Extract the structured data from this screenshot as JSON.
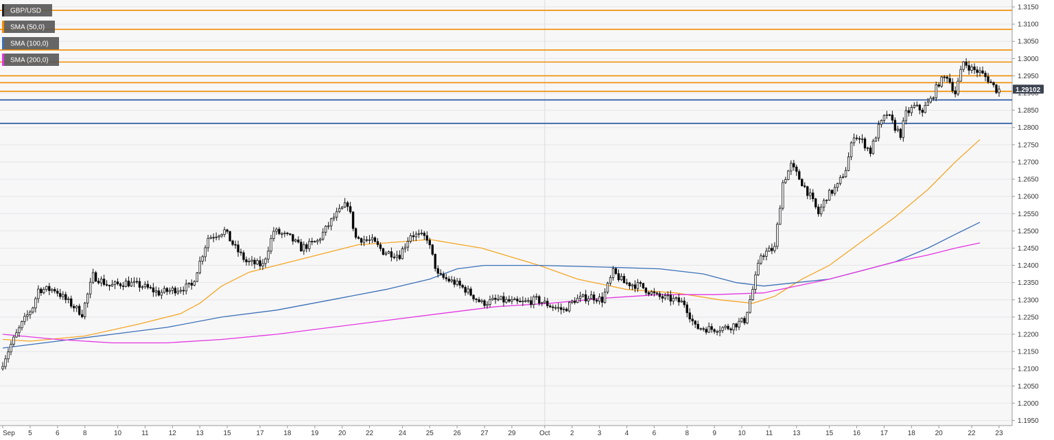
{
  "chart_data": {
    "type": "candlestick",
    "symbol": "GBP/USD",
    "last_price": "1.29102",
    "ylim": [
      1.1935,
      1.317
    ],
    "y_ticks": [
      "1.1950",
      "1.2000",
      "1.2050",
      "1.2100",
      "1.2150",
      "1.2200",
      "1.2250",
      "1.2300",
      "1.2350",
      "1.2400",
      "1.2450",
      "1.2500",
      "1.2550",
      "1.2600",
      "1.2650",
      "1.2700",
      "1.2750",
      "1.2800",
      "1.2850",
      "1.2900",
      "1.2950",
      "1.3000",
      "1.3050",
      "1.3100",
      "1.3150"
    ],
    "x_ticks": [
      {
        "label": "Sep",
        "i": 0
      },
      {
        "label": "5",
        "i": 10
      },
      {
        "label": "6",
        "i": 20
      },
      {
        "label": "8",
        "i": 30
      },
      {
        "label": "10",
        "i": 42
      },
      {
        "label": "11",
        "i": 52
      },
      {
        "label": "12",
        "i": 62
      },
      {
        "label": "13",
        "i": 72
      },
      {
        "label": "15",
        "i": 82
      },
      {
        "label": "17",
        "i": 94
      },
      {
        "label": "18",
        "i": 104
      },
      {
        "label": "19",
        "i": 114
      },
      {
        "label": "20",
        "i": 124
      },
      {
        "label": "22",
        "i": 134
      },
      {
        "label": "24",
        "i": 146
      },
      {
        "label": "25",
        "i": 156
      },
      {
        "label": "26",
        "i": 166
      },
      {
        "label": "27",
        "i": 176
      },
      {
        "label": "29",
        "i": 186
      },
      {
        "label": "Oct",
        "i": 198
      },
      {
        "label": "2",
        "i": 208
      },
      {
        "label": "3",
        "i": 218
      },
      {
        "label": "4",
        "i": 228
      },
      {
        "label": "6",
        "i": 238
      },
      {
        "label": "8",
        "i": 250
      },
      {
        "label": "9",
        "i": 260
      },
      {
        "label": "10",
        "i": 270
      },
      {
        "label": "11",
        "i": 280
      },
      {
        "label": "13",
        "i": 290
      },
      {
        "label": "15",
        "i": 302
      },
      {
        "label": "16",
        "i": 312
      },
      {
        "label": "17",
        "i": 322
      },
      {
        "label": "18",
        "i": 332
      },
      {
        "label": "20",
        "i": 342
      },
      {
        "label": "22",
        "i": 354
      },
      {
        "label": "23",
        "i": 364
      }
    ],
    "levels": [
      {
        "value": 1.314,
        "color": "#f08c00"
      },
      {
        "value": 1.3085,
        "color": "#f08c00"
      },
      {
        "value": 1.3025,
        "color": "#f08c00"
      },
      {
        "value": 1.299,
        "color": "#f08c00"
      },
      {
        "value": 1.295,
        "color": "#f08c00"
      },
      {
        "value": 1.293,
        "color": "#f08c00"
      },
      {
        "value": 1.2905,
        "color": "#f08c00"
      },
      {
        "value": 1.288,
        "color": "#1f4e9a"
      },
      {
        "value": 1.2812,
        "color": "#1f4e9a"
      }
    ],
    "keypoints": [
      [
        0,
        1.21
      ],
      [
        4,
        1.217
      ],
      [
        8,
        1.223
      ],
      [
        12,
        1.228
      ],
      [
        14,
        1.233
      ],
      [
        20,
        1.233
      ],
      [
        24,
        1.23
      ],
      [
        30,
        1.226
      ],
      [
        34,
        1.237
      ],
      [
        40,
        1.234
      ],
      [
        46,
        1.235
      ],
      [
        52,
        1.234
      ],
      [
        58,
        1.232
      ],
      [
        64,
        1.233
      ],
      [
        70,
        1.234
      ],
      [
        76,
        1.248
      ],
      [
        82,
        1.25
      ],
      [
        86,
        1.245
      ],
      [
        90,
        1.241
      ],
      [
        96,
        1.24
      ],
      [
        100,
        1.25
      ],
      [
        106,
        1.248
      ],
      [
        110,
        1.245
      ],
      [
        116,
        1.247
      ],
      [
        122,
        1.254
      ],
      [
        127,
        1.258
      ],
      [
        130,
        1.248
      ],
      [
        136,
        1.247
      ],
      [
        140,
        1.244
      ],
      [
        146,
        1.243
      ],
      [
        150,
        1.249
      ],
      [
        156,
        1.248
      ],
      [
        160,
        1.237
      ],
      [
        166,
        1.235
      ],
      [
        170,
        1.233
      ],
      [
        176,
        1.229
      ],
      [
        182,
        1.23
      ],
      [
        190,
        1.229
      ],
      [
        196,
        1.23
      ],
      [
        202,
        1.228
      ],
      [
        206,
        1.227
      ],
      [
        210,
        1.23
      ],
      [
        216,
        1.231
      ],
      [
        220,
        1.23
      ],
      [
        224,
        1.238
      ],
      [
        228,
        1.235
      ],
      [
        234,
        1.234
      ],
      [
        240,
        1.231
      ],
      [
        246,
        1.23
      ],
      [
        250,
        1.229
      ],
      [
        254,
        1.222
      ],
      [
        260,
        1.2215
      ],
      [
        266,
        1.222
      ],
      [
        272,
        1.224
      ],
      [
        275,
        1.233
      ],
      [
        278,
        1.243
      ],
      [
        283,
        1.245
      ],
      [
        286,
        1.264
      ],
      [
        289,
        1.269
      ],
      [
        293,
        1.264
      ],
      [
        296,
        1.26
      ],
      [
        299,
        1.255
      ],
      [
        302,
        1.26
      ],
      [
        306,
        1.263
      ],
      [
        309,
        1.268
      ],
      [
        312,
        1.278
      ],
      [
        315,
        1.276
      ],
      [
        318,
        1.273
      ],
      [
        321,
        1.28
      ],
      [
        324,
        1.284
      ],
      [
        327,
        1.28
      ],
      [
        329,
        1.278
      ],
      [
        331,
        1.284
      ],
      [
        334,
        1.286
      ],
      [
        337,
        1.285
      ],
      [
        340,
        1.288
      ],
      [
        343,
        1.293
      ],
      [
        346,
        1.295
      ],
      [
        349,
        1.29
      ],
      [
        352,
        1.299
      ],
      [
        355,
        1.297
      ],
      [
        358,
        1.296
      ],
      [
        361,
        1.294
      ],
      [
        364,
        1.291
      ]
    ],
    "sma_series": [
      {
        "name": "SMA (50,0)",
        "color": "#f5a623",
        "points": [
          [
            0,
            1.2185
          ],
          [
            10,
            1.218
          ],
          [
            30,
            1.2195
          ],
          [
            50,
            1.223
          ],
          [
            65,
            1.226
          ],
          [
            72,
            1.229
          ],
          [
            80,
            1.234
          ],
          [
            90,
            1.238
          ],
          [
            100,
            1.24
          ],
          [
            115,
            1.243
          ],
          [
            130,
            1.246
          ],
          [
            140,
            1.2465
          ],
          [
            156,
            1.2475
          ],
          [
            175,
            1.245
          ],
          [
            196,
            1.24
          ],
          [
            210,
            1.236
          ],
          [
            228,
            1.233
          ],
          [
            246,
            1.232
          ],
          [
            262,
            1.23
          ],
          [
            274,
            1.229
          ],
          [
            282,
            1.231
          ],
          [
            292,
            1.236
          ],
          [
            302,
            1.24
          ],
          [
            314,
            1.247
          ],
          [
            326,
            1.254
          ],
          [
            338,
            1.262
          ],
          [
            348,
            1.27
          ],
          [
            357,
            1.2765
          ]
        ]
      },
      {
        "name": "SMA (100,0)",
        "color": "#3a6fb5",
        "points": [
          [
            0,
            1.216
          ],
          [
            20,
            1.218
          ],
          [
            40,
            1.22
          ],
          [
            60,
            1.222
          ],
          [
            80,
            1.225
          ],
          [
            100,
            1.227
          ],
          [
            120,
            1.23
          ],
          [
            140,
            1.233
          ],
          [
            156,
            1.236
          ],
          [
            166,
            1.239
          ],
          [
            176,
            1.24
          ],
          [
            196,
            1.24
          ],
          [
            220,
            1.2395
          ],
          [
            240,
            1.239
          ],
          [
            256,
            1.2375
          ],
          [
            268,
            1.235
          ],
          [
            278,
            1.234
          ],
          [
            290,
            1.235
          ],
          [
            302,
            1.236
          ],
          [
            314,
            1.2385
          ],
          [
            326,
            1.241
          ],
          [
            338,
            1.245
          ],
          [
            348,
            1.249
          ],
          [
            357,
            1.2525
          ]
        ]
      },
      {
        "name": "SMA (200,0)",
        "color": "#e535e0",
        "points": [
          [
            0,
            1.22
          ],
          [
            20,
            1.2185
          ],
          [
            40,
            1.2175
          ],
          [
            60,
            1.2175
          ],
          [
            80,
            1.2185
          ],
          [
            100,
            1.22
          ],
          [
            120,
            1.222
          ],
          [
            140,
            1.224
          ],
          [
            160,
            1.226
          ],
          [
            180,
            1.228
          ],
          [
            200,
            1.229
          ],
          [
            220,
            1.2305
          ],
          [
            240,
            1.2315
          ],
          [
            260,
            1.2315
          ],
          [
            278,
            1.232
          ],
          [
            290,
            1.234
          ],
          [
            302,
            1.236
          ],
          [
            314,
            1.2385
          ],
          [
            326,
            1.241
          ],
          [
            338,
            1.243
          ],
          [
            348,
            1.245
          ],
          [
            357,
            1.2465
          ]
        ]
      }
    ],
    "legend": [
      {
        "label": "GBP/USD",
        "color": "#222222"
      },
      {
        "label": "SMA (50,0)",
        "color": "#f08c00"
      },
      {
        "label": "SMA (100,0)",
        "color": "#3a6fb5"
      },
      {
        "label": "SMA (200,0)",
        "color": "#e535e0"
      }
    ],
    "legend_position": "top-left",
    "grid": true,
    "up_color": "#ffffff",
    "down_color": "#000000",
    "badge_color": "#3b4250"
  }
}
